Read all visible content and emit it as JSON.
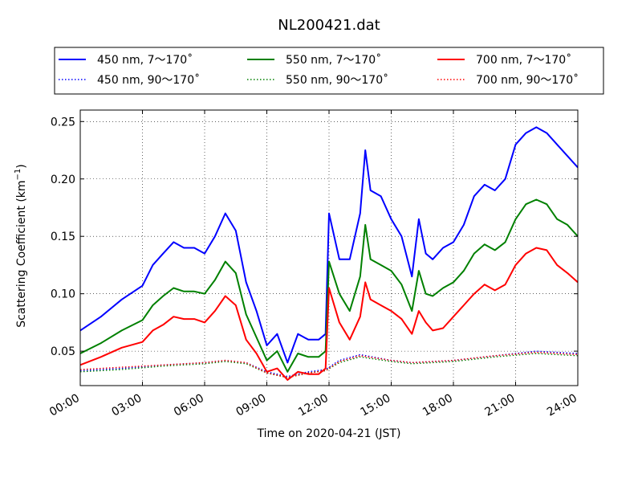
{
  "chart_data": {
    "type": "line",
    "title": "NL200421.dat",
    "xlabel": "Time on 2020-04-21 (JST)",
    "ylabel": {
      "prefix": "Scattering Coefficient (km",
      "superscript": "−1",
      "suffix": ")"
    },
    "xlim": [
      "00:00",
      "24:00"
    ],
    "ylim": [
      0.02,
      0.26
    ],
    "x_ticks": [
      "00:00",
      "03:00",
      "06:00",
      "09:00",
      "12:00",
      "15:00",
      "18:00",
      "21:00",
      "24:00"
    ],
    "y_ticks": [
      "0.05",
      "0.10",
      "0.15",
      "0.20",
      "0.25"
    ],
    "grid": true,
    "legend_position": "top, above plot",
    "series": [
      {
        "name": "450 nm, 7～170˚",
        "color": "#0000ff",
        "style": "solid",
        "x": [
          "00:00",
          "01:00",
          "02:00",
          "03:00",
          "03:30",
          "04:00",
          "04:30",
          "05:00",
          "05:30",
          "06:00",
          "06:30",
          "07:00",
          "07:30",
          "08:00",
          "08:30",
          "09:00",
          "09:30",
          "10:00",
          "10:30",
          "11:00",
          "11:30",
          "11:50",
          "12:00",
          "12:30",
          "13:00",
          "13:30",
          "13:45",
          "14:00",
          "14:30",
          "15:00",
          "15:30",
          "16:00",
          "16:20",
          "16:40",
          "17:00",
          "17:30",
          "18:00",
          "18:30",
          "19:00",
          "19:30",
          "20:00",
          "20:30",
          "21:00",
          "21:30",
          "22:00",
          "22:30",
          "23:00",
          "23:30",
          "24:00"
        ],
        "y": [
          0.068,
          0.08,
          0.095,
          0.107,
          0.125,
          0.135,
          0.145,
          0.14,
          0.14,
          0.135,
          0.15,
          0.17,
          0.155,
          0.11,
          0.085,
          0.055,
          0.065,
          0.04,
          0.065,
          0.06,
          0.06,
          0.065,
          0.17,
          0.13,
          0.13,
          0.17,
          0.225,
          0.19,
          0.185,
          0.165,
          0.15,
          0.115,
          0.165,
          0.135,
          0.13,
          0.14,
          0.145,
          0.16,
          0.185,
          0.195,
          0.19,
          0.2,
          0.23,
          0.24,
          0.245,
          0.24,
          0.23,
          0.22,
          0.21
        ]
      },
      {
        "name": "550 nm, 7～170˚",
        "color": "#008000",
        "style": "solid",
        "x": [
          "00:00",
          "01:00",
          "02:00",
          "03:00",
          "03:30",
          "04:00",
          "04:30",
          "05:00",
          "05:30",
          "06:00",
          "06:30",
          "07:00",
          "07:30",
          "08:00",
          "08:30",
          "09:00",
          "09:30",
          "10:00",
          "10:30",
          "11:00",
          "11:30",
          "11:50",
          "12:00",
          "12:30",
          "13:00",
          "13:30",
          "13:45",
          "14:00",
          "14:30",
          "15:00",
          "15:30",
          "16:00",
          "16:20",
          "16:40",
          "17:00",
          "17:30",
          "18:00",
          "18:30",
          "19:00",
          "19:30",
          "20:00",
          "20:30",
          "21:00",
          "21:30",
          "22:00",
          "22:30",
          "23:00",
          "23:30",
          "24:00"
        ],
        "y": [
          0.048,
          0.057,
          0.068,
          0.077,
          0.09,
          0.098,
          0.105,
          0.102,
          0.102,
          0.1,
          0.112,
          0.128,
          0.118,
          0.082,
          0.062,
          0.042,
          0.05,
          0.032,
          0.048,
          0.045,
          0.045,
          0.05,
          0.128,
          0.1,
          0.085,
          0.115,
          0.16,
          0.13,
          0.125,
          0.12,
          0.108,
          0.085,
          0.12,
          0.1,
          0.098,
          0.105,
          0.11,
          0.12,
          0.135,
          0.143,
          0.138,
          0.145,
          0.165,
          0.178,
          0.182,
          0.178,
          0.165,
          0.16,
          0.15
        ]
      },
      {
        "name": "700 nm, 7～170˚",
        "color": "#ff0000",
        "style": "solid",
        "x": [
          "00:00",
          "01:00",
          "02:00",
          "03:00",
          "03:30",
          "04:00",
          "04:30",
          "05:00",
          "05:30",
          "06:00",
          "06:30",
          "07:00",
          "07:30",
          "08:00",
          "08:30",
          "09:00",
          "09:30",
          "10:00",
          "10:30",
          "11:00",
          "11:30",
          "11:50",
          "12:00",
          "12:30",
          "13:00",
          "13:30",
          "13:45",
          "14:00",
          "14:30",
          "15:00",
          "15:30",
          "16:00",
          "16:20",
          "16:40",
          "17:00",
          "17:30",
          "18:00",
          "18:30",
          "19:00",
          "19:30",
          "20:00",
          "20:30",
          "21:00",
          "21:30",
          "22:00",
          "22:30",
          "23:00",
          "23:30",
          "24:00"
        ],
        "y": [
          0.038,
          0.045,
          0.053,
          0.058,
          0.068,
          0.073,
          0.08,
          0.078,
          0.078,
          0.075,
          0.085,
          0.098,
          0.09,
          0.06,
          0.048,
          0.032,
          0.035,
          0.025,
          0.032,
          0.03,
          0.03,
          0.035,
          0.105,
          0.075,
          0.06,
          0.08,
          0.11,
          0.095,
          0.09,
          0.085,
          0.078,
          0.065,
          0.085,
          0.075,
          0.068,
          0.07,
          0.08,
          0.09,
          0.1,
          0.108,
          0.103,
          0.108,
          0.125,
          0.135,
          0.14,
          0.138,
          0.125,
          0.118,
          0.11
        ]
      },
      {
        "name": "450 nm, 90～170˚",
        "color": "#0000ff",
        "style": "dotted",
        "x": [
          "00:00",
          "02:00",
          "04:00",
          "06:00",
          "07:00",
          "08:00",
          "09:00",
          "10:00",
          "11:00",
          "11:50",
          "12:30",
          "13:30",
          "15:00",
          "16:00",
          "18:00",
          "20:00",
          "22:00",
          "24:00"
        ],
        "y": [
          0.033,
          0.035,
          0.038,
          0.04,
          0.042,
          0.04,
          0.032,
          0.028,
          0.032,
          0.034,
          0.042,
          0.047,
          0.042,
          0.04,
          0.042,
          0.046,
          0.05,
          0.048
        ]
      },
      {
        "name": "550 nm, 90～170˚",
        "color": "#008000",
        "style": "dotted",
        "x": [
          "00:00",
          "02:00",
          "04:00",
          "06:00",
          "07:00",
          "08:00",
          "09:00",
          "10:00",
          "11:00",
          "11:50",
          "12:30",
          "13:30",
          "15:00",
          "16:00",
          "18:00",
          "20:00",
          "22:00",
          "24:00"
        ],
        "y": [
          0.032,
          0.034,
          0.037,
          0.039,
          0.041,
          0.039,
          0.031,
          0.027,
          0.031,
          0.033,
          0.04,
          0.045,
          0.041,
          0.039,
          0.041,
          0.045,
          0.048,
          0.046
        ]
      },
      {
        "name": "700 nm, 90～170˚",
        "color": "#ff0000",
        "style": "dotted",
        "x": [
          "00:00",
          "02:00",
          "04:00",
          "06:00",
          "07:00",
          "08:00",
          "09:00",
          "10:00",
          "11:00",
          "11:50",
          "12:30",
          "13:30",
          "15:00",
          "16:00",
          "18:00",
          "20:00",
          "22:00",
          "24:00"
        ],
        "y": [
          0.034,
          0.036,
          0.038,
          0.04,
          0.042,
          0.04,
          0.031,
          0.027,
          0.031,
          0.033,
          0.041,
          0.046,
          0.042,
          0.04,
          0.042,
          0.046,
          0.049,
          0.047
        ]
      }
    ]
  }
}
